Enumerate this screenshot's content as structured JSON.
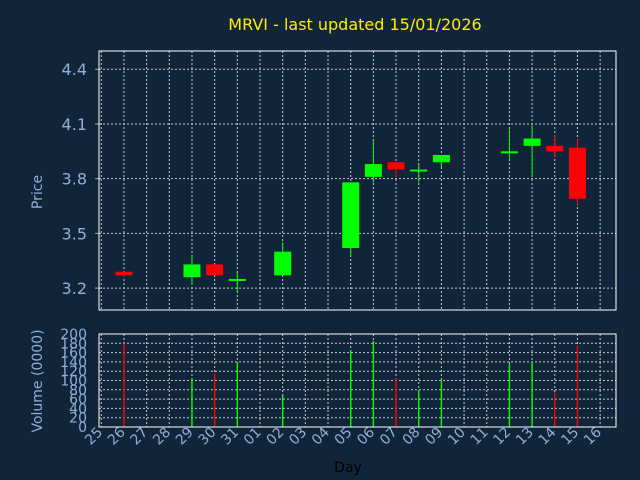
{
  "chart_data": {
    "type": "candlestick",
    "title": "MRVI - last updated 15/01/2026",
    "xlabel": "Day",
    "price_axis": {
      "label": "Price",
      "ticks": [
        3.2,
        3.5,
        3.8,
        4.1,
        4.4
      ],
      "range": [
        3.08,
        4.5
      ]
    },
    "volume_axis": {
      "label": "Volume (0000)",
      "ticks": [
        0,
        20,
        40,
        60,
        80,
        100,
        120,
        140,
        160,
        180,
        200
      ],
      "range": [
        0,
        200
      ]
    },
    "x_ticks": [
      "25",
      "26",
      "27",
      "28",
      "29",
      "30",
      "31",
      "01",
      "02",
      "03",
      "04",
      "05",
      "06",
      "07",
      "08",
      "09",
      "10",
      "11",
      "12",
      "13",
      "14",
      "15",
      "16"
    ],
    "grid": true,
    "candles": [
      {
        "day": "26",
        "open": 3.29,
        "close": 3.27,
        "high": 3.29,
        "low": 3.26,
        "volume": 180
      },
      {
        "day": "29",
        "open": 3.26,
        "close": 3.33,
        "high": 3.37,
        "low": 3.22,
        "volume": 105
      },
      {
        "day": "30",
        "open": 3.33,
        "close": 3.27,
        "high": 3.33,
        "low": 3.27,
        "volume": 115
      },
      {
        "day": "31",
        "open": 3.25,
        "close": 3.25,
        "high": 3.29,
        "low": 3.18,
        "volume": 140
      },
      {
        "day": "02",
        "open": 3.27,
        "close": 3.4,
        "high": 3.45,
        "low": 3.27,
        "volume": 70
      },
      {
        "day": "05",
        "open": 3.42,
        "close": 3.78,
        "high": 3.78,
        "low": 3.38,
        "volume": 165
      },
      {
        "day": "06",
        "open": 3.81,
        "close": 3.88,
        "high": 4.01,
        "low": 3.78,
        "volume": 185
      },
      {
        "day": "07",
        "open": 3.89,
        "close": 3.85,
        "high": 3.89,
        "low": 3.81,
        "volume": 105
      },
      {
        "day": "08",
        "open": 3.84,
        "close": 3.85,
        "high": 3.88,
        "low": 3.78,
        "volume": 80
      },
      {
        "day": "09",
        "open": 3.89,
        "close": 3.93,
        "high": 3.93,
        "low": 3.86,
        "volume": 100
      },
      {
        "day": "12",
        "open": 3.94,
        "close": 3.95,
        "high": 4.07,
        "low": 3.91,
        "volume": 135
      },
      {
        "day": "13",
        "open": 3.98,
        "close": 4.02,
        "high": 4.1,
        "low": 3.81,
        "volume": 140
      },
      {
        "day": "14",
        "open": 3.98,
        "close": 3.95,
        "high": 4.04,
        "low": 3.92,
        "volume": 75
      },
      {
        "day": "15",
        "open": 3.97,
        "close": 3.69,
        "high": 4.02,
        "low": 3.65,
        "volume": 175
      }
    ],
    "colors": {
      "up": "#00ff00",
      "down": "#ff0000",
      "grid": "#c8c8c8",
      "plot_border": "#ffffff",
      "background": "#10243a",
      "title": "#ffee00",
      "axis_text": "#8fb0d8"
    }
  }
}
